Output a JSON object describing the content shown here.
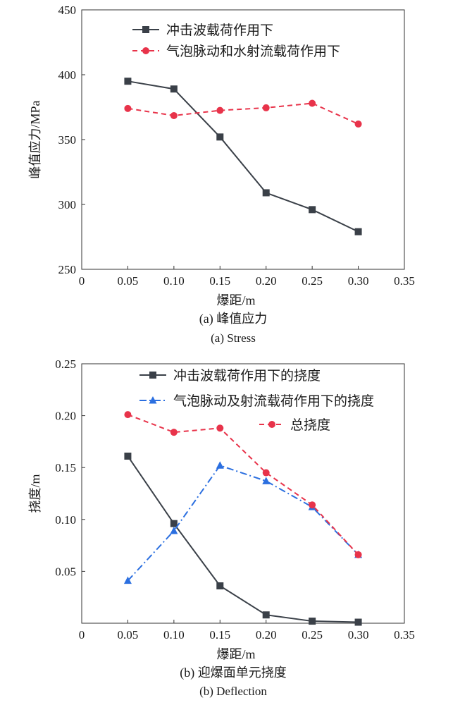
{
  "chart_data": [
    {
      "type": "line",
      "caption_cn": "(a) 峰值应力",
      "caption_en": "(a) Stress",
      "xlabel": "爆距/m",
      "ylabel": "峰值应力/MPa",
      "xlim": [
        0,
        0.35
      ],
      "ylim": [
        250,
        450
      ],
      "xticks": [
        "0",
        "0.05",
        "0.10",
        "0.15",
        "0.20",
        "0.25",
        "0.30",
        "0.35"
      ],
      "yticks": [
        "250",
        "300",
        "350",
        "400",
        "450"
      ],
      "grid": false,
      "legend_position": "top-right",
      "series": [
        {
          "name": "冲击波载荷作用下",
          "color": "#3a4048",
          "line_style": "solid",
          "marker": "square",
          "x": [
            0.05,
            0.1,
            0.15,
            0.2,
            0.25,
            0.3
          ],
          "y": [
            395,
            389,
            352,
            309,
            296,
            279
          ]
        },
        {
          "name": "气泡脉动和水射流载荷作用下",
          "color": "#e8334a",
          "line_style": "dashed",
          "marker": "circle",
          "x": [
            0.05,
            0.1,
            0.15,
            0.2,
            0.25,
            0.3
          ],
          "y": [
            374,
            368.5,
            372.5,
            374.5,
            378,
            362
          ]
        }
      ]
    },
    {
      "type": "line",
      "caption_cn": "(b) 迎爆面单元挠度",
      "caption_en": "(b) Deflection",
      "xlabel": "爆距/m",
      "ylabel": "挠度/m",
      "xlim": [
        0,
        0.35
      ],
      "ylim": [
        0,
        0.25
      ],
      "xticks": [
        "0",
        "0.05",
        "0.10",
        "0.15",
        "0.20",
        "0.25",
        "0.30",
        "0.35"
      ],
      "yticks": [
        "0.05",
        "0.10",
        "0.15",
        "0.20",
        "0.25"
      ],
      "grid": false,
      "legend_position": "top-right",
      "series": [
        {
          "name": "冲击波载荷作用下的挠度",
          "color": "#3a4048",
          "line_style": "solid",
          "marker": "square",
          "x": [
            0.05,
            0.1,
            0.15,
            0.2,
            0.25,
            0.3
          ],
          "y": [
            0.161,
            0.096,
            0.036,
            0.008,
            0.002,
            0.001
          ]
        },
        {
          "name": "气泡脉动及射流载荷作用下的挠度",
          "color": "#2b6fe0",
          "line_style": "dashdot",
          "marker": "triangle",
          "x": [
            0.05,
            0.1,
            0.15,
            0.2,
            0.25,
            0.3
          ],
          "y": [
            0.041,
            0.089,
            0.152,
            0.137,
            0.112,
            0.066
          ]
        },
        {
          "name": "总挠度",
          "color": "#e8334a",
          "line_style": "dashed",
          "marker": "circle",
          "x": [
            0.05,
            0.1,
            0.15,
            0.2,
            0.25,
            0.3
          ],
          "y": [
            0.201,
            0.184,
            0.188,
            0.145,
            0.114,
            0.066
          ]
        }
      ]
    }
  ]
}
